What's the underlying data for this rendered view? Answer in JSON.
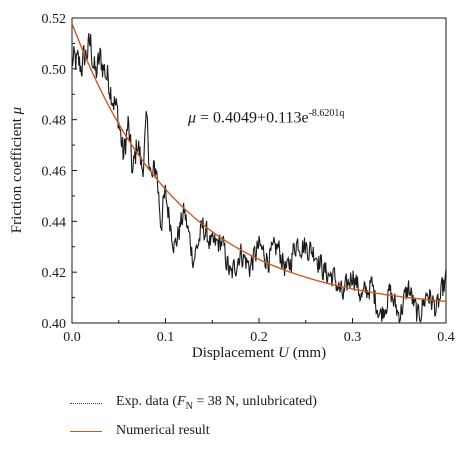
{
  "chart_data": {
    "type": "line",
    "xlabel_main": "Displacement ",
    "xlabel_var": "U",
    "xlabel_unit": " (mm)",
    "ylabel_main": "Friction coefficient ",
    "ylabel_var": "μ",
    "xlim": [
      0.0,
      0.4
    ],
    "ylim": [
      0.4,
      0.52
    ],
    "xticks": [
      "0.0",
      "0.1",
      "0.2",
      "0.3",
      "0.4"
    ],
    "yticks": [
      "0.40",
      "0.42",
      "0.44",
      "0.46",
      "0.48",
      "0.50",
      "0.52"
    ],
    "annotation": {
      "lhs": "μ",
      "body": " = 0.4049+0.113e",
      "exponent": "-8.6201q"
    },
    "series": [
      {
        "name": "Exp. data (F_N = 38 N, unlubricated)",
        "style": "dotted",
        "color": "#1a1a1a",
        "x": [
          0.0,
          0.01,
          0.02,
          0.025,
          0.03,
          0.04,
          0.05,
          0.055,
          0.06,
          0.065,
          0.07,
          0.075,
          0.08,
          0.085,
          0.09,
          0.095,
          0.1,
          0.11,
          0.12,
          0.13,
          0.14,
          0.15,
          0.16,
          0.17,
          0.18,
          0.19,
          0.2,
          0.21,
          0.22,
          0.23,
          0.24,
          0.25,
          0.26,
          0.27,
          0.28,
          0.29,
          0.3,
          0.31,
          0.32,
          0.33,
          0.34,
          0.35,
          0.36,
          0.37,
          0.38,
          0.39,
          0.4
        ],
        "y": [
          0.503,
          0.501,
          0.51,
          0.497,
          0.504,
          0.495,
          0.48,
          0.465,
          0.478,
          0.458,
          0.472,
          0.46,
          0.478,
          0.455,
          0.462,
          0.44,
          0.45,
          0.43,
          0.444,
          0.425,
          0.438,
          0.43,
          0.432,
          0.418,
          0.428,
          0.422,
          0.43,
          0.425,
          0.43,
          0.42,
          0.432,
          0.43,
          0.428,
          0.42,
          0.418,
          0.41,
          0.42,
          0.41,
          0.415,
          0.403,
          0.412,
          0.403,
          0.414,
          0.402,
          0.412,
          0.405,
          0.417
        ]
      },
      {
        "name": "Numerical result",
        "style": "solid",
        "color": "#d05a22",
        "formula": "0.4049+0.113e^(-8.6201q)"
      }
    ],
    "legend": [
      {
        "text_before": "Exp. data (",
        "var": "F",
        "sub": "N",
        "text_after": " = 38 N, unlubricated)"
      },
      {
        "text": "Numerical result"
      }
    ]
  }
}
